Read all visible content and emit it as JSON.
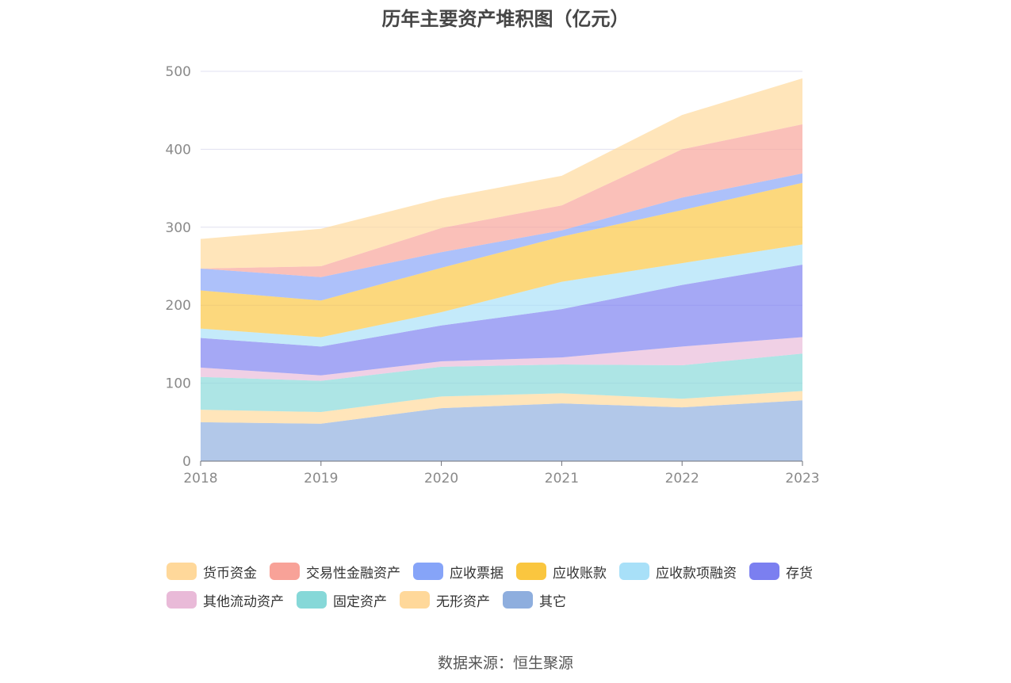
{
  "chart_data": {
    "type": "area",
    "stacked": true,
    "title": "历年主要资产堆积图（亿元）",
    "x": [
      "2018",
      "2019",
      "2020",
      "2021",
      "2022",
      "2023"
    ],
    "ylim": [
      0,
      500
    ],
    "yticks": [
      0,
      100,
      200,
      300,
      400,
      500
    ],
    "grid": true,
    "legend_position": "bottom",
    "series": [
      {
        "name": "其它",
        "color": "#8eaede",
        "values": [
          50,
          48,
          68,
          74,
          69,
          78
        ]
      },
      {
        "name": "无形资产",
        "color": "#ffd89a",
        "values": [
          16,
          15,
          15,
          13,
          11,
          12
        ]
      },
      {
        "name": "固定资产",
        "color": "#86d8d8",
        "values": [
          42,
          40,
          38,
          37,
          43,
          48
        ]
      },
      {
        "name": "其他流动资产",
        "color": "#e9bad8",
        "values": [
          12,
          7,
          7,
          9,
          24,
          21
        ]
      },
      {
        "name": "存货",
        "color": "#7b7ff0",
        "values": [
          38,
          37,
          46,
          62,
          79,
          93
        ]
      },
      {
        "name": "应收款项融资",
        "color": "#a8e0f8",
        "values": [
          12,
          12,
          17,
          35,
          28,
          26
        ]
      },
      {
        "name": "应收账款",
        "color": "#fac63f",
        "values": [
          49,
          47,
          57,
          58,
          68,
          79
        ]
      },
      {
        "name": "应收票据",
        "color": "#86a4f8",
        "values": [
          28,
          30,
          20,
          8,
          16,
          12
        ]
      },
      {
        "name": "交易性金融资产",
        "color": "#f8a298",
        "values": [
          0,
          14,
          31,
          32,
          62,
          63
        ]
      },
      {
        "name": "货币资金",
        "color": "#ffd89a",
        "values": [
          38,
          48,
          38,
          38,
          44,
          59
        ]
      }
    ],
    "legend_order": [
      "货币资金",
      "交易性金融资产",
      "应收票据",
      "应收账款",
      "应收款项融资",
      "存货",
      "其他流动资产",
      "固定资产",
      "无形资产",
      "其它"
    ]
  },
  "source_text": "数据来源：恒生聚源"
}
